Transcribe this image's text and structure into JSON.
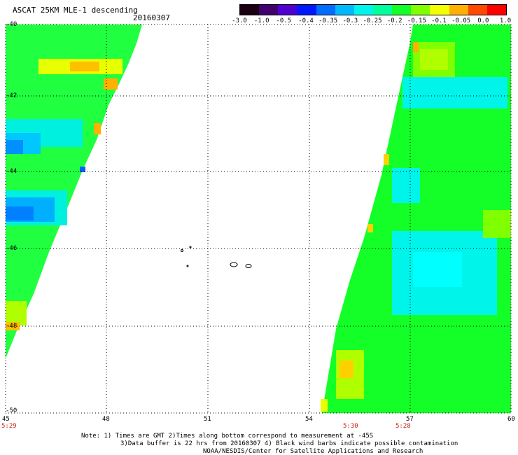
{
  "header": {
    "title": "ASCAT 25KM MLE-1 descending",
    "date": "20160307"
  },
  "colorbar": {
    "labels": [
      "-3.0",
      "-1.0",
      "-0.5",
      "-0.4",
      "-0.35",
      "-0.3",
      "-0.25",
      "-0.2",
      "-0.15",
      "-0.1",
      "-0.05",
      "0.0",
      "1.0"
    ],
    "colors": [
      "#1a0010",
      "#40006e",
      "#4f00d0",
      "#0018ff",
      "#006cff",
      "#00b8ff",
      "#00f4ea",
      "#00ff9c",
      "#14ff28",
      "#80ff00",
      "#f4ff00",
      "#ffb000",
      "#ff4800",
      "#ff0000"
    ]
  },
  "map": {
    "lat_labels": [
      "-40",
      "-42",
      "-44",
      "-46",
      "-48",
      "-50"
    ],
    "lon_labels": [
      "45",
      "48",
      "51",
      "54",
      "57",
      "60"
    ],
    "time_labels": [
      "5:29",
      "5:30",
      "5:28"
    ]
  },
  "footer": {
    "line1": "Note: 1) Times are GMT 2)Times along bottom correspond to measurement at -45S",
    "line2": "3)Data buffer is 22 hrs from 20160307 4) Black wind barbs indicate possible contamination",
    "line3": "NOAA/NESDIS/Center for Satellite Applications and Research"
  }
}
